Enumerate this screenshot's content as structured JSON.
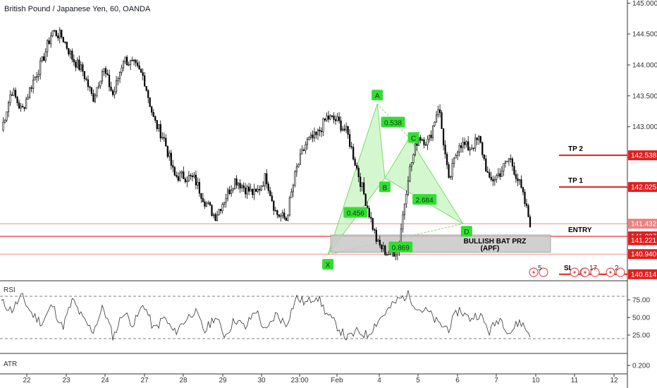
{
  "header": {
    "title": "British Pound / Japanese Yen, 60, OANDA"
  },
  "colors": {
    "candle": "#000000",
    "harmonic_fill": "#b9f2b0",
    "harmonic_line": "#7dd96b",
    "point_fill": "#33dd33",
    "level_line": "#e31e1e",
    "level_tag": "#e31e1e",
    "thin_level": "#f08a8a",
    "prz_fill": "#c8c8c8",
    "rsi_line": "#333333",
    "grid_dash": "#555555"
  },
  "chart_data": {
    "type": "candlestick",
    "title": "British Pound / Japanese Yen, 60, OANDA",
    "x_ticks": [
      "22",
      "23",
      "24",
      "27",
      "28",
      "29",
      "30",
      "23:00",
      "Feb",
      "4",
      "5",
      "6",
      "7",
      "10",
      "11",
      "12"
    ],
    "y_ticks": [
      "145.000",
      "144.500",
      "144.000",
      "143.500",
      "143.000",
      "142.500",
      "142.000"
    ],
    "ylim": [
      140.52,
      145.05
    ],
    "price_path": [
      142.95,
      143.6,
      143.25,
      143.7,
      144.05,
      144.55,
      144.45,
      144.1,
      143.9,
      143.45,
      143.95,
      143.5,
      144.1,
      144.0,
      143.8,
      143.1,
      142.8,
      142.2,
      142.2,
      142.15,
      141.8,
      141.55,
      141.85,
      142.15,
      142.0,
      141.9,
      142.2,
      141.6,
      141.5,
      142.3,
      142.75,
      142.85,
      143.15,
      143.1,
      142.9,
      142.3,
      141.7,
      141.1,
      140.95,
      141.0,
      142.2,
      142.85,
      142.75,
      143.35,
      142.1,
      142.75,
      142.65,
      142.8,
      142.1,
      142.25,
      142.5,
      142.05,
      141.45
    ],
    "harmonic": {
      "name": "BULLISH BAT PRZ",
      "subtitle": "(APF)",
      "points": [
        {
          "label": "X",
          "t": 0.604,
          "price": 140.93
        },
        {
          "label": "A",
          "t": 0.695,
          "price": 143.37
        },
        {
          "label": "B",
          "t": 0.709,
          "price": 142.17
        },
        {
          "label": "C",
          "t": 0.754,
          "price": 142.82
        },
        {
          "label": "D",
          "t": 0.853,
          "price": 141.43
        }
      ],
      "ratios": [
        {
          "value": "0.456",
          "t": 0.655,
          "price": 141.61
        },
        {
          "value": "0.538",
          "t": 0.724,
          "price": 143.07
        },
        {
          "value": "2.684",
          "t": 0.782,
          "price": 141.82
        },
        {
          "value": "0.869",
          "t": 0.738,
          "price": 141.05
        }
      ],
      "prz_price_top": 141.25,
      "prz_price_bottom": 140.97
    },
    "levels": [
      {
        "label": "TP 2",
        "price": 142.538,
        "tag": "142.538"
      },
      {
        "label": "TP 1",
        "price": 142.025,
        "tag": "142.025"
      },
      {
        "label": "ENTRY",
        "price": 141.227,
        "tag": "141.227"
      },
      {
        "label": "SL",
        "price": 140.614,
        "tag": "140.614"
      }
    ],
    "price_tags": [
      "141.432",
      "141.221",
      "140.940"
    ],
    "rsi": {
      "label": "RSI",
      "y_ticks": [
        "75.00",
        "50.00",
        "25.00"
      ],
      "ylim": [
        0,
        100
      ],
      "upper": 80,
      "lower": 20,
      "path": [
        72,
        60,
        80,
        55,
        42,
        68,
        35,
        75,
        48,
        30,
        65,
        22,
        58,
        40,
        70,
        32,
        50,
        28,
        45,
        60,
        30,
        52,
        24,
        48,
        35,
        62,
        28,
        55,
        40,
        78,
        70,
        82,
        55,
        38,
        20,
        30,
        25,
        45,
        60,
        75,
        82,
        62,
        58,
        40,
        35,
        62,
        48,
        55,
        30,
        50,
        28,
        45,
        25
      ]
    },
    "atr": {
      "label": "ATR",
      "y_ticks": [
        "0.200"
      ]
    },
    "markers": [
      "5",
      "17",
      "2"
    ]
  }
}
